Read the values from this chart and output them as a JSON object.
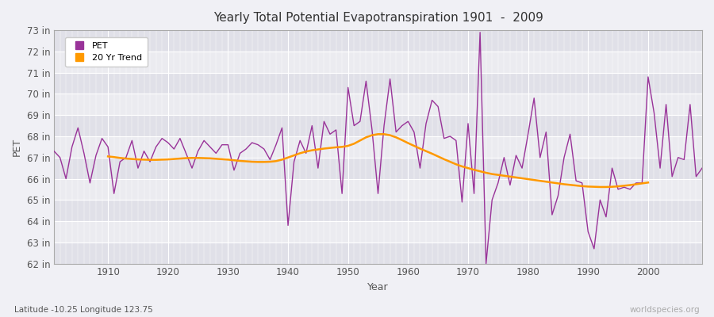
{
  "title": "Yearly Total Potential Evapotranspiration 1901  -  2009",
  "xlabel": "Year",
  "ylabel": "PET",
  "subtitle": "Latitude -10.25 Longitude 123.75",
  "watermark": "worldspecies.org",
  "pet_color": "#993399",
  "trend_color": "#ff9900",
  "fig_bg": "#f0f0f5",
  "plot_bg": "#ebebf0",
  "grid_color": "#ffffff",
  "alt_band_color": "#e0e0e8",
  "years": [
    1901,
    1902,
    1903,
    1904,
    1905,
    1906,
    1907,
    1908,
    1909,
    1910,
    1911,
    1912,
    1913,
    1914,
    1915,
    1916,
    1917,
    1918,
    1919,
    1920,
    1921,
    1922,
    1923,
    1924,
    1925,
    1926,
    1927,
    1928,
    1929,
    1930,
    1931,
    1932,
    1933,
    1934,
    1935,
    1936,
    1937,
    1938,
    1939,
    1940,
    1941,
    1942,
    1943,
    1944,
    1945,
    1946,
    1947,
    1948,
    1949,
    1950,
    1951,
    1952,
    1953,
    1954,
    1955,
    1956,
    1957,
    1958,
    1959,
    1960,
    1961,
    1962,
    1963,
    1964,
    1965,
    1966,
    1967,
    1968,
    1969,
    1970,
    1971,
    1972,
    1973,
    1974,
    1975,
    1976,
    1977,
    1978,
    1979,
    1980,
    1981,
    1982,
    1983,
    1984,
    1985,
    1986,
    1987,
    1988,
    1989,
    1990,
    1991,
    1992,
    1993,
    1994,
    1995,
    1996,
    1997,
    1998,
    1999,
    2000,
    2001,
    2002,
    2003,
    2004,
    2005,
    2006,
    2007,
    2008,
    2009
  ],
  "pet_values": [
    67.3,
    67.0,
    66.0,
    67.5,
    68.4,
    67.2,
    65.8,
    67.1,
    67.9,
    67.5,
    65.3,
    66.8,
    67.0,
    67.8,
    66.5,
    67.3,
    66.8,
    67.5,
    67.9,
    67.7,
    67.4,
    67.9,
    67.2,
    66.5,
    67.3,
    67.8,
    67.5,
    67.2,
    67.6,
    67.6,
    66.4,
    67.2,
    67.4,
    67.7,
    67.6,
    67.4,
    66.9,
    67.6,
    68.4,
    63.8,
    66.8,
    67.8,
    67.2,
    68.5,
    66.5,
    68.7,
    68.1,
    68.3,
    65.3,
    70.3,
    68.5,
    68.7,
    70.6,
    68.3,
    65.3,
    68.5,
    70.7,
    68.2,
    68.5,
    68.7,
    68.2,
    66.5,
    68.6,
    69.7,
    69.4,
    67.9,
    68.0,
    67.8,
    64.9,
    68.6,
    65.3,
    72.9,
    62.0,
    65.0,
    65.8,
    67.0,
    65.7,
    67.1,
    66.5,
    68.1,
    69.8,
    67.0,
    68.2,
    64.3,
    65.2,
    67.0,
    68.1,
    65.9,
    65.8,
    63.5,
    62.7,
    65.0,
    64.2,
    66.5,
    65.5,
    65.6,
    65.5,
    65.8,
    65.8,
    70.8,
    69.1,
    66.5,
    69.5,
    66.1,
    67.0,
    66.9,
    69.5,
    66.1,
    66.5
  ],
  "trend_years": [
    1910,
    1911,
    1912,
    1913,
    1914,
    1915,
    1916,
    1917,
    1918,
    1919,
    1920,
    1921,
    1922,
    1923,
    1924,
    1925,
    1926,
    1927,
    1928,
    1929,
    1930,
    1931,
    1932,
    1933,
    1934,
    1935,
    1936,
    1937,
    1938,
    1939,
    1940,
    1941,
    1942,
    1943,
    1944,
    1945,
    1946,
    1947,
    1948,
    1949,
    1950,
    1951,
    1952,
    1953,
    1954,
    1955,
    1956,
    1957,
    1958,
    1959,
    1960,
    1961,
    1962,
    1963,
    1964,
    1965,
    1966,
    1967,
    1968,
    1969,
    1970,
    1971,
    1972,
    1973,
    1974,
    1975,
    1976,
    1977,
    1978,
    1979,
    1980,
    1981,
    1982,
    1983,
    1984,
    1985,
    1986,
    1987,
    1988,
    1989,
    1990,
    1991,
    1992,
    1993,
    1994,
    1995,
    1996,
    1997,
    1998,
    1999,
    2000
  ],
  "trend_values": [
    67.05,
    67.02,
    66.98,
    66.95,
    66.93,
    66.91,
    66.9,
    66.89,
    66.89,
    66.9,
    66.91,
    66.93,
    66.95,
    66.97,
    66.98,
    66.98,
    66.97,
    66.96,
    66.94,
    66.92,
    66.9,
    66.87,
    66.84,
    66.82,
    66.8,
    66.79,
    66.79,
    66.8,
    66.83,
    66.9,
    67.0,
    67.1,
    67.2,
    67.28,
    67.34,
    67.38,
    67.42,
    67.45,
    67.48,
    67.5,
    67.55,
    67.65,
    67.8,
    67.95,
    68.05,
    68.1,
    68.1,
    68.05,
    67.95,
    67.82,
    67.68,
    67.55,
    67.42,
    67.3,
    67.18,
    67.05,
    66.92,
    66.8,
    66.68,
    66.58,
    66.5,
    66.42,
    66.35,
    66.28,
    66.22,
    66.18,
    66.14,
    66.1,
    66.06,
    66.02,
    65.98,
    65.94,
    65.9,
    65.86,
    65.82,
    65.78,
    65.74,
    65.71,
    65.68,
    65.65,
    65.63,
    65.62,
    65.61,
    65.61,
    65.62,
    65.64,
    65.67,
    65.7,
    65.74,
    65.78,
    65.82
  ],
  "ylim": [
    62,
    73
  ],
  "yticks": [
    62,
    63,
    64,
    65,
    66,
    67,
    68,
    69,
    70,
    71,
    72,
    73
  ],
  "xlim": [
    1901,
    2009
  ],
  "xticks": [
    1910,
    1920,
    1930,
    1940,
    1950,
    1960,
    1970,
    1980,
    1990,
    2000
  ]
}
